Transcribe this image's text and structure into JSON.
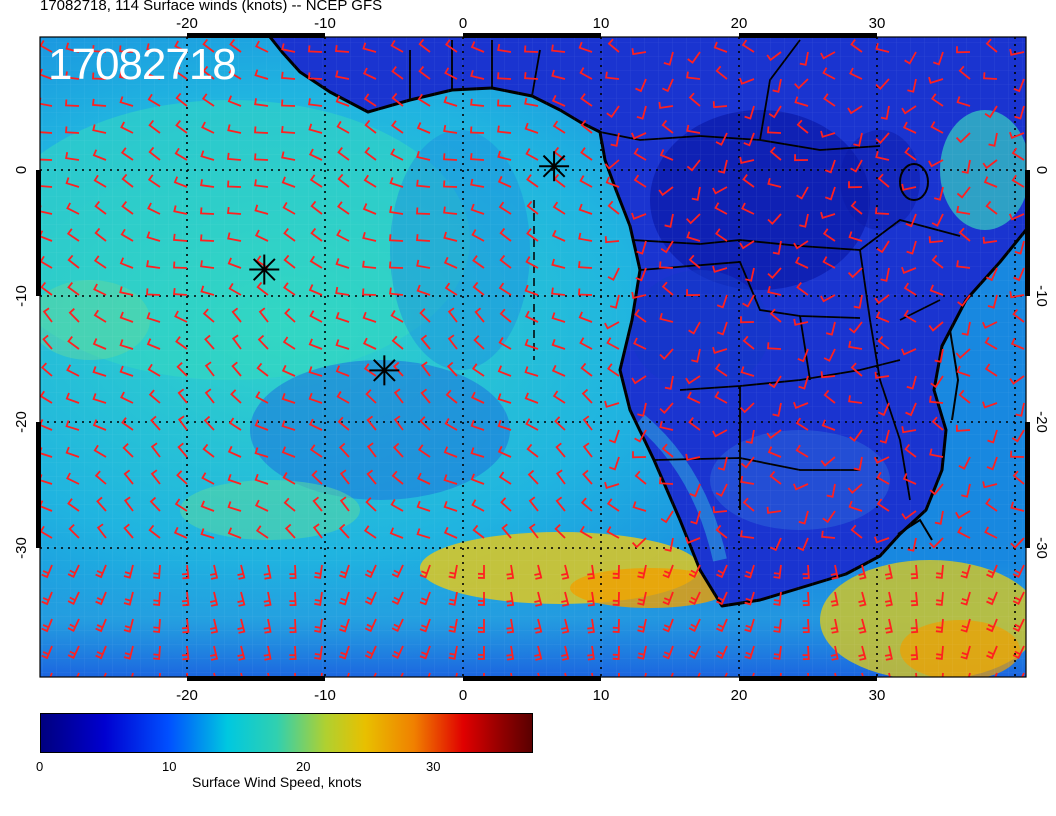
{
  "title": "17082718, 114 Surface winds (knots) -- NCEP GFS",
  "stamp": "17082718",
  "lon_ticks": [
    "-20",
    "-10",
    "0",
    "10",
    "20",
    "30"
  ],
  "lat_ticks": [
    "0",
    "-10",
    "-20",
    "-30"
  ],
  "colorbar": {
    "label": "Surface Wind Speed, knots",
    "ticks": [
      "0",
      "10",
      "20",
      "30"
    ],
    "range": [
      0,
      37
    ]
  },
  "markers": [
    {
      "lon": 6.6,
      "lat": 0.3
    },
    {
      "lon": -14.4,
      "lat": -7.9
    },
    {
      "lon": -5.7,
      "lat": -15.9
    }
  ],
  "colors": {
    "barbs": "#ff2020",
    "coast": "#000000",
    "ocean": "#1fb4e0",
    "land": "#1a34d0"
  }
}
